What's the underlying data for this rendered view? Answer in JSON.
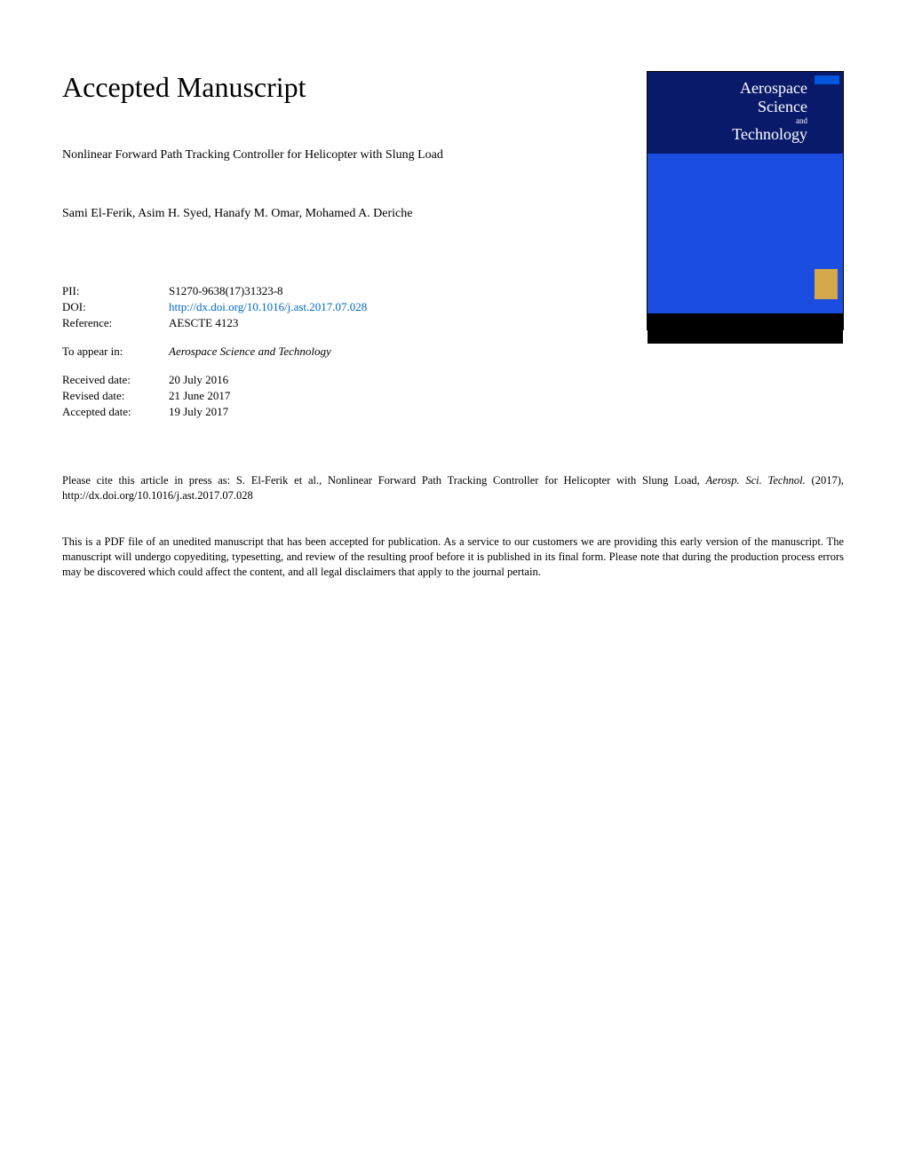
{
  "header": {
    "accepted_title": "Accepted Manuscript"
  },
  "paper": {
    "title": "Nonlinear Forward Path Tracking Controller for Helicopter with Slung Load",
    "authors": "Sami El-Ferik, Asim H. Syed, Hanafy M. Omar, Mohamed A. Deriche"
  },
  "metadata": {
    "pii_label": "PII:",
    "pii_value": "S1270-9638(17)31323-8",
    "doi_label": "DOI:",
    "doi_value": "http://dx.doi.org/10.1016/j.ast.2017.07.028",
    "reference_label": "Reference:",
    "reference_value": "AESCTE 4123",
    "appear_label": "To appear in:",
    "appear_value": "Aerospace Science and Technology",
    "received_label": "Received date:",
    "received_value": "20 July 2016",
    "revised_label": "Revised date:",
    "revised_value": "21 June 2017",
    "accepted_label": "Accepted date:",
    "accepted_value": "19 July 2017"
  },
  "journal_cover": {
    "title_line1": "Aerospace",
    "title_line2": "Science",
    "title_and": "and",
    "title_line3": "Technology"
  },
  "citation": {
    "text_prefix": "Please cite this article in press as: S. El-Ferik et al., Nonlinear Forward Path Tracking Controller for Helicopter with Slung Load, ",
    "journal_abbrev": "Aerosp. Sci. Technol.",
    "text_suffix": " (2017), http://dx.doi.org/10.1016/j.ast.2017.07.028"
  },
  "disclaimer": {
    "text": "This is a PDF file of an unedited manuscript that has been accepted for publication. As a service to our customers we are providing this early version of the manuscript. The manuscript will undergo copyediting, typesetting, and review of the resulting proof before it is published in its final form. Please note that during the production process errors may be discovered which could affect the content, and all legal disclaimers that apply to the journal pertain."
  },
  "colors": {
    "link_color": "#0066cc",
    "cover_top_bg": "#0a1a6b",
    "cover_middle_bg": "#1a4de0",
    "cover_bottom_bg": "#000000",
    "cover_logo_bg": "#d4a84a"
  }
}
